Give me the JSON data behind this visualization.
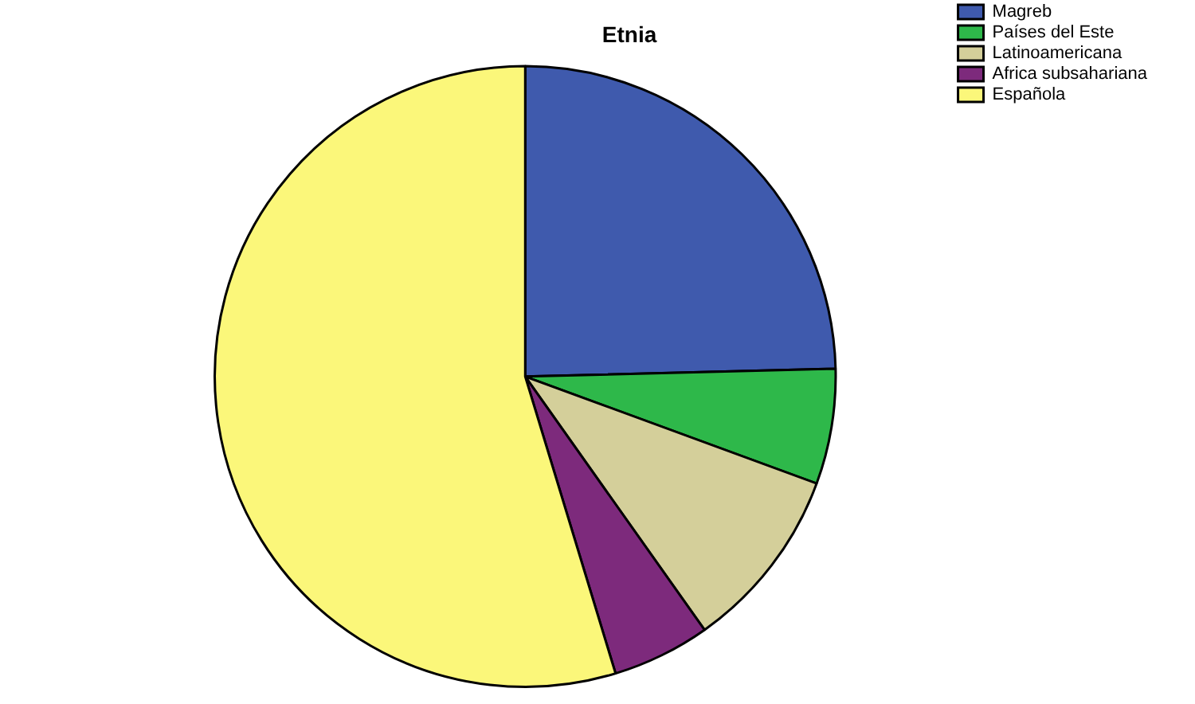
{
  "chart_data": {
    "type": "pie",
    "title": "Etnia",
    "categories": [
      "Magreb",
      "Países del Este",
      "Latinoamericana",
      "Africa subsahariana",
      "Española"
    ],
    "values": [
      24.6,
      6,
      9.6,
      5.1,
      54.7
    ],
    "colors": [
      "#3f5aad",
      "#2eb84a",
      "#d4cf9a",
      "#7d2a7c",
      "#fbf77a"
    ],
    "legend": "top right"
  }
}
